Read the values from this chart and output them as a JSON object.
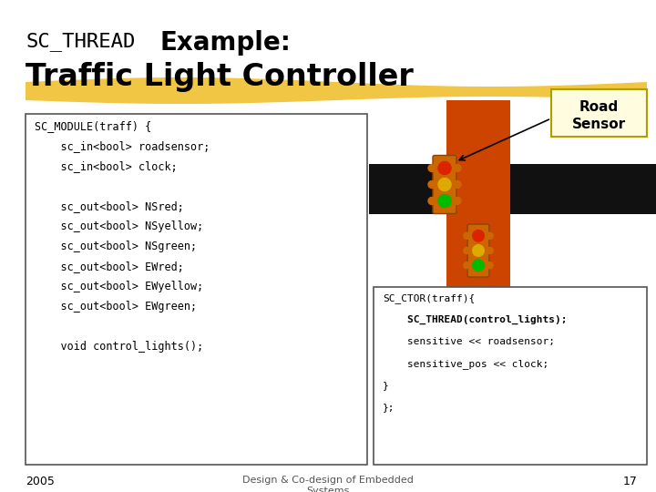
{
  "bg_color": "#ffffff",
  "year": "2005",
  "page": "17",
  "sensor_label": "Road\nSensor",
  "footer_text": "Design & Co-design of Embedded\nSystems"
}
